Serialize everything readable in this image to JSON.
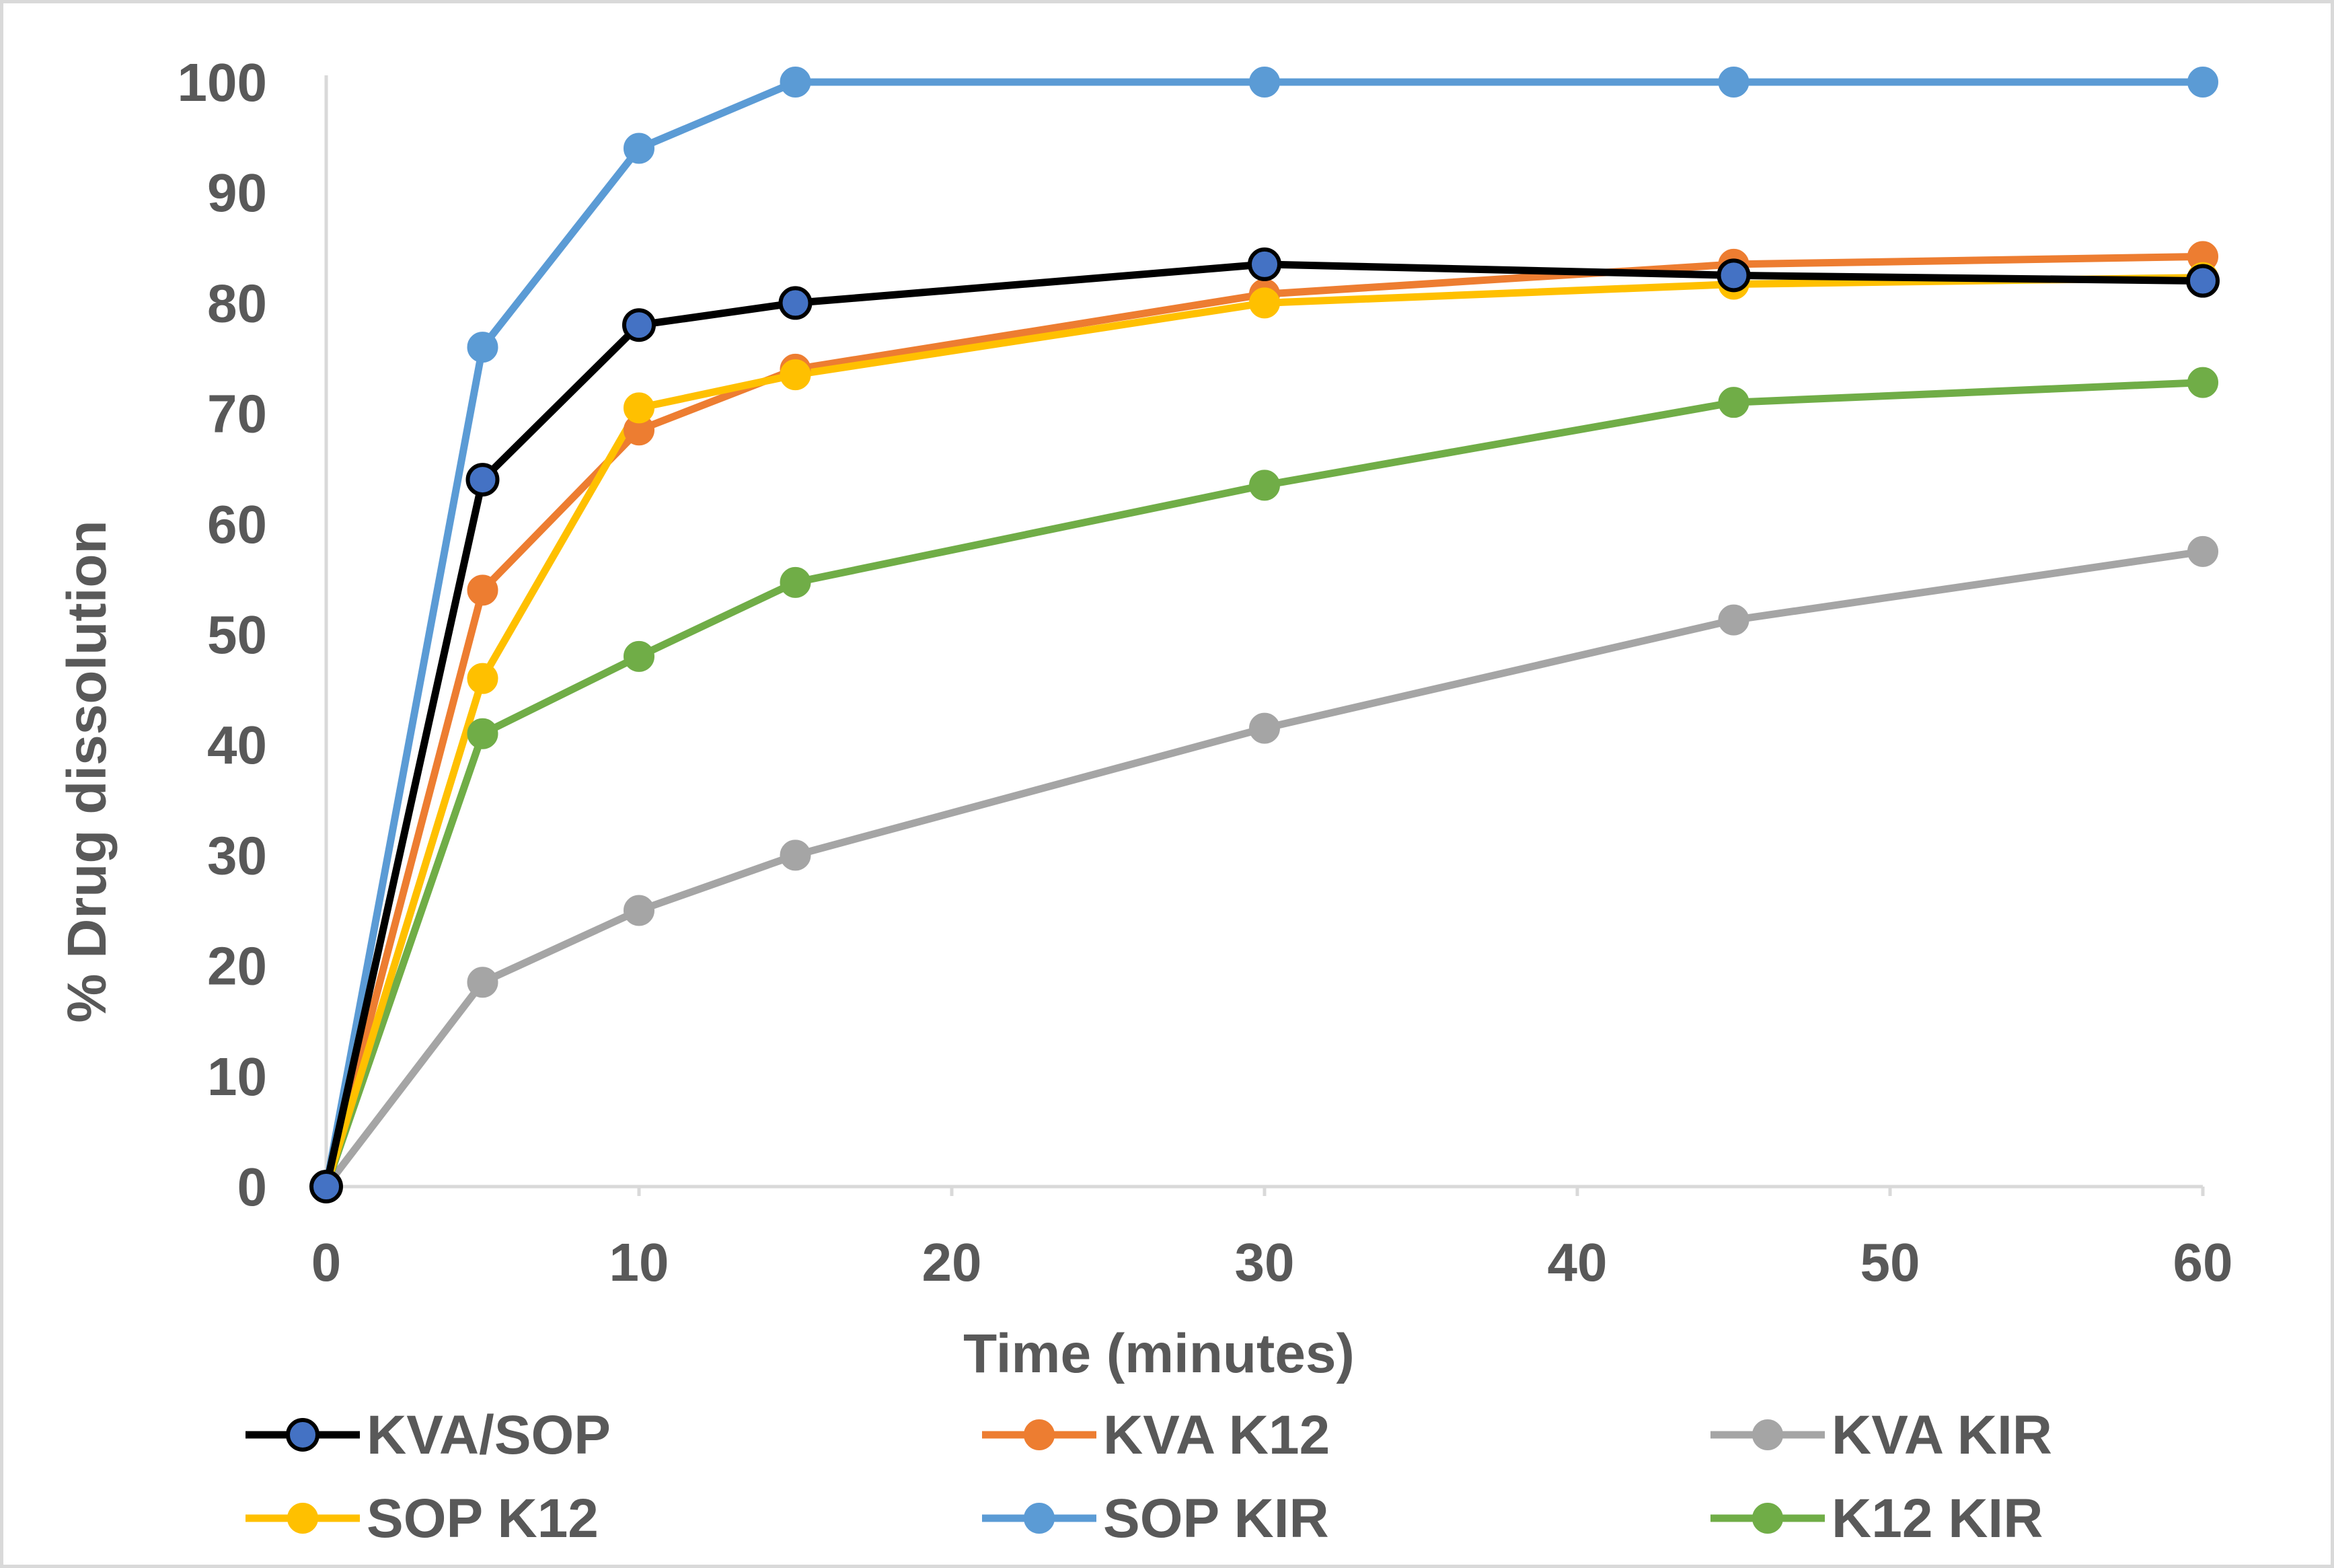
{
  "chart_data": {
    "type": "line",
    "title": "",
    "xlabel": "Time (minutes)",
    "ylabel": "% Drug dissolution",
    "xlim": [
      0,
      60
    ],
    "ylim": [
      0,
      100
    ],
    "xticks": [
      0,
      10,
      20,
      30,
      40,
      50,
      60
    ],
    "yticks": [
      0,
      10,
      20,
      30,
      40,
      50,
      60,
      70,
      80,
      90,
      100
    ],
    "grid": false,
    "legend_position": "bottom",
    "x": [
      0,
      5,
      10,
      15,
      30,
      45,
      60
    ],
    "series": [
      {
        "name": "KVA/SOP",
        "line_color": "#000000",
        "marker_color": "#4472c4",
        "marker_edge": "#000000",
        "values": [
          0,
          64,
          78,
          80,
          83.5,
          82.5,
          82
        ]
      },
      {
        "name": "KVA K12",
        "line_color": "#ed7d31",
        "marker_color": "#ed7d31",
        "marker_edge": "#ed7d31",
        "values": [
          0,
          54,
          68.5,
          74,
          80.8,
          83.5,
          84.2
        ]
      },
      {
        "name": "KVA KIR",
        "line_color": "#a5a5a5",
        "marker_color": "#a5a5a5",
        "marker_edge": "#a5a5a5",
        "values": [
          0,
          18.5,
          25,
          30,
          41.5,
          51.3,
          57.5
        ]
      },
      {
        "name": "SOP K12",
        "line_color": "#ffc000",
        "marker_color": "#ffc000",
        "marker_edge": "#ffc000",
        "values": [
          0,
          46,
          70.5,
          73.5,
          80,
          81.7,
          82.3
        ]
      },
      {
        "name": "SOP KIR",
        "line_color": "#5b9bd5",
        "marker_color": "#5b9bd5",
        "marker_edge": "#5b9bd5",
        "values": [
          0,
          76,
          94,
          100,
          100,
          100,
          100
        ]
      },
      {
        "name": "K12 KIR",
        "line_color": "#70ad47",
        "marker_color": "#70ad47",
        "marker_edge": "#70ad47",
        "values": [
          0,
          41,
          48,
          54.7,
          63.5,
          71,
          72.8
        ]
      }
    ]
  }
}
